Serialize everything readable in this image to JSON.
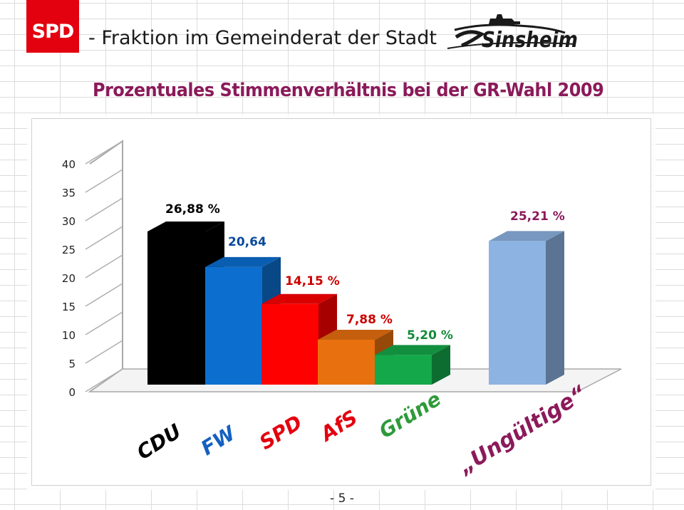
{
  "header": {
    "logo_text": "SPD",
    "title": "- Fraktion im Gemeinderat der Stadt",
    "city_logo_text": "Sinsheim"
  },
  "page_number": "- 5 -",
  "chart_data": {
    "type": "bar",
    "title": "Prozentuales Stimmenverhältnis bei der GR-Wahl 2009",
    "xlabel": "",
    "ylabel": "",
    "ylim": [
      0,
      40
    ],
    "yticks": [
      0,
      5,
      10,
      15,
      20,
      25,
      30,
      35,
      40
    ],
    "grid": false,
    "legend": "none",
    "categories": [
      "CDU",
      "FW",
      "SPD",
      "AfS",
      "Grüne",
      "„Ungültige“"
    ],
    "values": [
      26.88,
      20.64,
      14.15,
      7.88,
      5.2,
      25.21
    ],
    "data_labels": [
      "26,88 %",
      "20,64",
      "14,15 %",
      "7,88 %",
      "5,20 %",
      "25,21 %"
    ],
    "colors": {
      "CDU": "#000000",
      "FW": "#0c6fd0",
      "SPD": "#ff0000",
      "AfS": "#e8700f",
      "Grüne": "#14a84a",
      "„Ungültige“": "#8db3e2"
    },
    "label_colors": [
      "#000000",
      "#0b4a9a",
      "#cc0000",
      "#cc0000",
      "#128a3a",
      "#8b1a5a"
    ],
    "category_label_colors": [
      "#000000",
      "#1560c0",
      "#e3000f",
      "#e3000f",
      "#2e9a3a",
      "#8b1a5a"
    ]
  }
}
